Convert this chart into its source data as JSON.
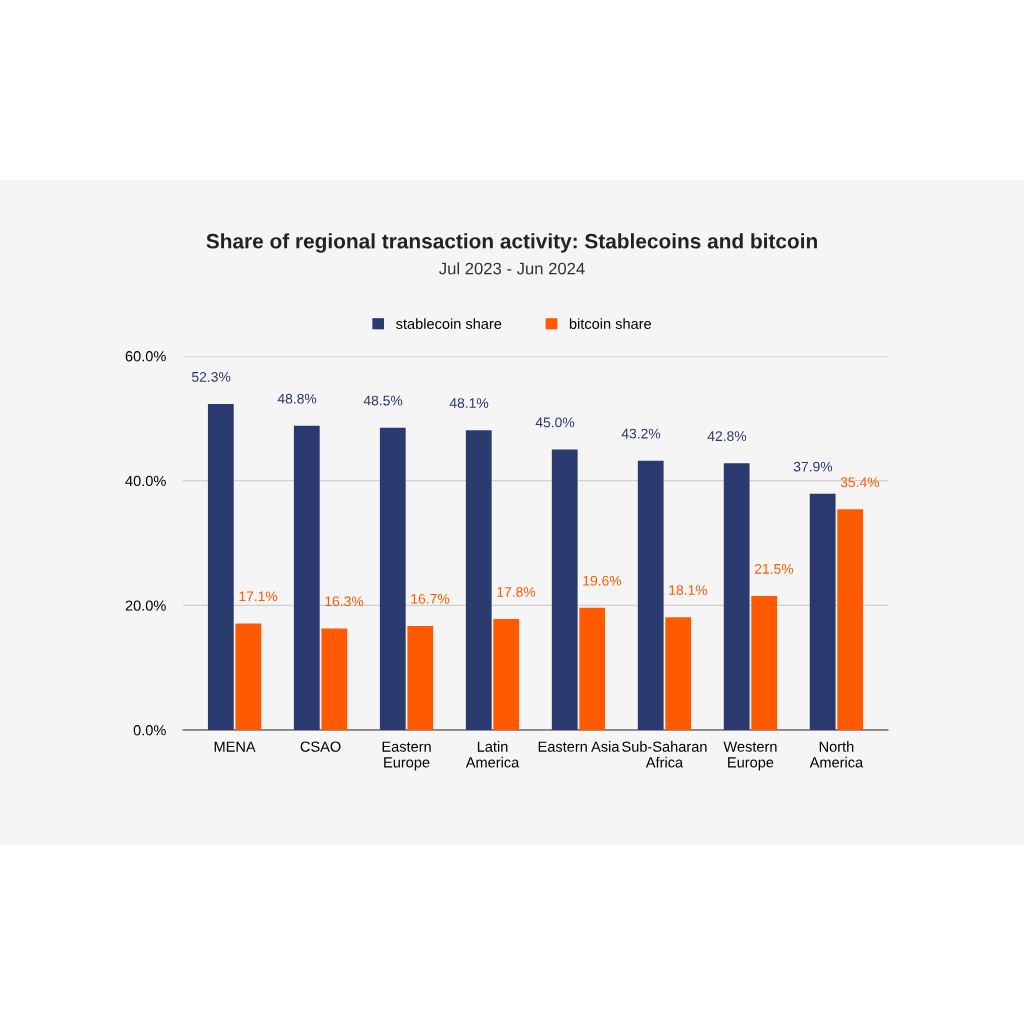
{
  "chart_data": {
    "type": "bar",
    "title": "Share of regional transaction activity: Stablecoins and bitcoin",
    "subtitle": "Jul 2023 - Jun 2024",
    "categories": [
      "MENA",
      "CSAO",
      "Eastern\nEurope",
      "Latin\nAmerica",
      "Eastern Asia",
      "Sub-Saharan\nAfrica",
      "Western\nEurope",
      "North\nAmerica"
    ],
    "series": [
      {
        "name": "stablecoin share",
        "color": "#2b3a6e",
        "values": [
          52.3,
          48.8,
          48.5,
          48.1,
          45.0,
          43.2,
          42.8,
          37.9
        ],
        "value_labels": [
          "52.3%",
          "48.8%",
          "48.5%",
          "48.1%",
          "45.0%",
          "43.2%",
          "42.8%",
          "37.9%"
        ]
      },
      {
        "name": "bitcoin share",
        "color": "#ff5a00",
        "values": [
          17.1,
          16.3,
          16.7,
          17.8,
          19.6,
          18.1,
          21.5,
          35.4
        ],
        "value_labels": [
          "17.1%",
          "16.3%",
          "16.7%",
          "17.8%",
          "19.6%",
          "18.1%",
          "21.5%",
          "35.4%"
        ]
      }
    ],
    "ylim": [
      0,
      60
    ],
    "yticks": [
      {
        "value": 0,
        "label": "0.0%"
      },
      {
        "value": 20,
        "label": "20.0%"
      },
      {
        "value": 40,
        "label": "40.0%"
      },
      {
        "value": 60,
        "label": "60.0%"
      }
    ],
    "grid": "y",
    "legend": "top"
  }
}
